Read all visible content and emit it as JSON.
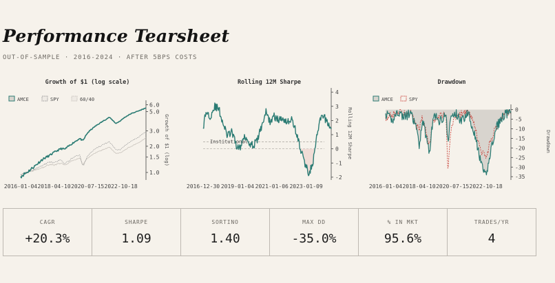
{
  "header": {
    "title": "Performance Tearsheet",
    "subtitle": "OUT-OF-SAMPLE · 2016-2024 · AFTER 5BPS COSTS"
  },
  "colors": {
    "primary": "#2a7b73",
    "spy": "#9a9a9a",
    "benchmark": "#c8c3bc",
    "spy_drawdown": "#c9463d",
    "area_fill": "#d8d4ce",
    "neg_fill": "#f1d9d4",
    "reference": "#a9a49d"
  },
  "chart_data": [
    {
      "type": "line",
      "title": "Growth of $1 (log scale)",
      "ylabel": "Growth of $1 (log)",
      "log_scale": true,
      "xlim": [
        "2016-01-04",
        "2024-06-28"
      ],
      "ylim": [
        0.85,
        6.5
      ],
      "y_ticks": [
        1.0,
        1.5,
        2.0,
        3.0,
        5.0,
        6.0
      ],
      "x_ticks": [
        "2016-01-04",
        "2018-04-10",
        "2020-07-15",
        "2022-10-18"
      ],
      "legend_position": "top-left",
      "series": [
        {
          "name": "AMCE",
          "x": [
            "2016-01-04",
            "2016-07-01",
            "2017-01-03",
            "2017-07-03",
            "2018-01-02",
            "2018-04-10",
            "2018-10-01",
            "2019-01-02",
            "2019-07-01",
            "2020-01-02",
            "2020-03-23",
            "2020-07-15",
            "2021-01-04",
            "2021-07-01",
            "2022-01-03",
            "2022-06-16",
            "2022-10-18",
            "2023-01-03",
            "2023-07-03",
            "2024-01-02",
            "2024-06-28"
          ],
          "values": [
            0.9,
            1.02,
            1.2,
            1.42,
            1.58,
            1.7,
            1.88,
            1.85,
            2.15,
            2.45,
            2.3,
            2.85,
            3.35,
            3.8,
            4.3,
            3.65,
            3.95,
            4.25,
            4.75,
            5.1,
            5.5
          ]
        },
        {
          "name": "SPY",
          "x": [
            "2016-01-04",
            "2016-07-01",
            "2017-01-03",
            "2017-07-03",
            "2018-01-02",
            "2018-04-10",
            "2018-10-01",
            "2019-01-02",
            "2019-07-01",
            "2020-01-02",
            "2020-03-23",
            "2020-07-15",
            "2021-01-04",
            "2021-07-01",
            "2022-01-03",
            "2022-06-16",
            "2022-10-18",
            "2023-01-03",
            "2023-07-03",
            "2024-01-02",
            "2024-06-28"
          ],
          "values": [
            0.95,
            1.0,
            1.1,
            1.2,
            1.33,
            1.28,
            1.4,
            1.25,
            1.45,
            1.6,
            1.15,
            1.55,
            1.85,
            2.05,
            2.25,
            1.8,
            1.85,
            2.0,
            2.3,
            2.55,
            2.95
          ]
        },
        {
          "name": "60/40",
          "x": [
            "2016-01-04",
            "2016-07-01",
            "2017-01-03",
            "2017-07-03",
            "2018-01-02",
            "2018-04-10",
            "2018-10-01",
            "2019-01-02",
            "2019-07-01",
            "2020-01-02",
            "2020-03-23",
            "2020-07-15",
            "2021-01-04",
            "2021-07-01",
            "2022-01-03",
            "2022-06-16",
            "2022-10-18",
            "2023-01-03",
            "2023-07-03",
            "2024-01-02",
            "2024-06-28"
          ],
          "values": [
            0.95,
            1.0,
            1.07,
            1.14,
            1.24,
            1.21,
            1.28,
            1.2,
            1.36,
            1.47,
            1.22,
            1.46,
            1.66,
            1.8,
            1.95,
            1.65,
            1.68,
            1.8,
            2.0,
            2.2,
            2.5
          ]
        }
      ]
    },
    {
      "type": "line",
      "title": "Rolling 12M Sharpe",
      "ylabel": "Rolling 12M Sharpe",
      "xlim": [
        "2016-12-30",
        "2024-06-28"
      ],
      "ylim": [
        -2.1,
        4.2
      ],
      "y_ticks": [
        -2,
        -1,
        0,
        1,
        2,
        3,
        4
      ],
      "x_ticks": [
        "2016-12-30",
        "2019-01-04",
        "2021-01-06",
        "2023-01-09"
      ],
      "reference_line": {
        "label": "Institutional",
        "y": 0.5
      },
      "series": [
        {
          "name": "AMCE",
          "x": [
            "2016-12-30",
            "2017-03-01",
            "2017-06-01",
            "2017-09-01",
            "2017-12-01",
            "2018-03-01",
            "2018-06-01",
            "2018-09-01",
            "2018-12-01",
            "2019-03-01",
            "2019-06-01",
            "2019-09-01",
            "2019-12-02",
            "2020-03-02",
            "2020-06-01",
            "2020-09-01",
            "2020-12-01",
            "2021-03-01",
            "2021-06-01",
            "2021-09-01",
            "2021-12-01",
            "2022-03-01",
            "2022-06-01",
            "2022-09-01",
            "2022-12-01",
            "2023-03-01",
            "2023-06-01",
            "2023-09-01",
            "2023-12-01",
            "2024-03-01",
            "2024-06-28"
          ],
          "values": [
            1.5,
            2.6,
            2.3,
            3.0,
            2.8,
            1.8,
            0.9,
            1.2,
            0.3,
            0.0,
            1.0,
            0.5,
            0.2,
            0.6,
            1.6,
            2.6,
            1.9,
            2.3,
            2.0,
            2.2,
            1.9,
            2.1,
            1.3,
            0.1,
            -0.9,
            -1.7,
            -1.1,
            1.0,
            2.3,
            2.1,
            1.4
          ]
        }
      ]
    },
    {
      "type": "area",
      "title": "Drawdown",
      "ylabel": "Drawdown",
      "xlim": [
        "2016-01-04",
        "2024-06-28"
      ],
      "ylim": [
        -36,
        2
      ],
      "y_ticks": [
        0,
        -5,
        -10,
        -15,
        -20,
        -25,
        -30,
        -35
      ],
      "x_ticks": [
        "2016-01-04",
        "2018-04-10",
        "2020-07-15",
        "2022-10-18"
      ],
      "legend_position": "top-left",
      "series": [
        {
          "name": "AMCE",
          "x": [
            "2016-01-04",
            "2016-06-01",
            "2016-11-01",
            "2017-04-03",
            "2017-09-01",
            "2018-02-01",
            "2018-04-10",
            "2018-07-02",
            "2018-12-24",
            "2019-04-01",
            "2019-09-03",
            "2020-02-03",
            "2020-03-23",
            "2020-06-01",
            "2020-10-01",
            "2021-03-01",
            "2021-08-02",
            "2022-01-03",
            "2022-06-16",
            "2022-10-18",
            "2023-03-01",
            "2023-08-01",
            "2024-01-02",
            "2024-06-28"
          ],
          "values": [
            -2,
            -6,
            -1,
            -4,
            -2,
            -9,
            -20,
            -5,
            -22,
            -3,
            -6,
            -2,
            -18,
            -4,
            -2,
            -6,
            -1,
            -12,
            -28,
            -35,
            -20,
            -8,
            -3,
            -1
          ]
        },
        {
          "name": "SPY",
          "x": [
            "2016-01-04",
            "2016-06-01",
            "2016-11-01",
            "2017-04-03",
            "2017-09-01",
            "2018-02-01",
            "2018-04-10",
            "2018-07-02",
            "2018-12-24",
            "2019-04-01",
            "2019-09-03",
            "2020-02-03",
            "2020-03-23",
            "2020-06-01",
            "2020-10-01",
            "2021-03-01",
            "2021-08-02",
            "2022-01-03",
            "2022-06-16",
            "2022-10-18",
            "2023-03-01",
            "2023-08-01",
            "2024-01-02",
            "2024-06-28"
          ],
          "values": [
            -4,
            -3,
            -1,
            -2,
            -1,
            -8,
            -10,
            -4,
            -19,
            -5,
            -3,
            -2,
            -33,
            -10,
            -4,
            -2,
            -1,
            -8,
            -22,
            -25,
            -15,
            -8,
            -2,
            -1
          ]
        }
      ]
    }
  ],
  "stats": [
    {
      "label": "CAGR",
      "value": "+20.3%"
    },
    {
      "label": "SHARPE",
      "value": "1.09"
    },
    {
      "label": "SORTINO",
      "value": "1.40"
    },
    {
      "label": "MAX DD",
      "value": "-35.0%"
    },
    {
      "label": "% IN MKT",
      "value": "95.6%"
    },
    {
      "label": "TRADES/YR",
      "value": "4"
    }
  ]
}
